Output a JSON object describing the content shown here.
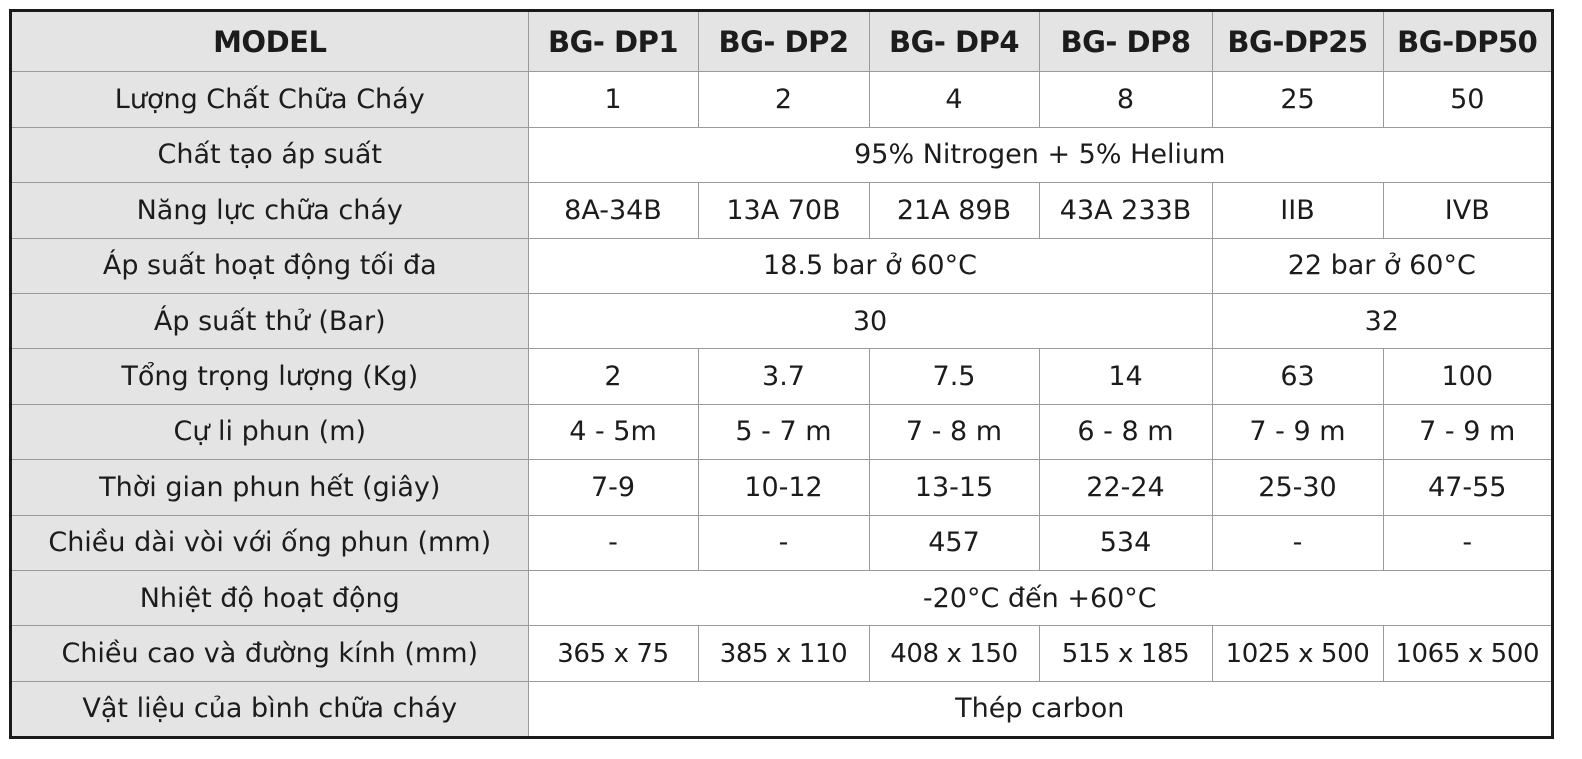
{
  "header": {
    "model_label": "MODEL",
    "models": [
      "BG- DP1",
      "BG- DP2",
      "BG- DP4",
      "BG- DP8",
      "BG-DP25",
      "BG-DP50"
    ]
  },
  "rows": {
    "agent_amount": {
      "label": "Lượng Chất Chữa Cháy",
      "values": [
        "1",
        "2",
        "4",
        "8",
        "25",
        "50"
      ]
    },
    "pressurizing_agent": {
      "label": "Chất tạo áp suất",
      "value": "95% Nitrogen + 5% Helium"
    },
    "fire_rating": {
      "label": "Năng lực chữa cháy",
      "values": [
        "8A-34B",
        "13A 70B",
        "21A 89B",
        "43A 233B",
        "IIB",
        "IVB"
      ]
    },
    "max_pressure": {
      "label": "Áp suất hoạt động tối đa",
      "value_small": "18.5 bar ở 60°C",
      "value_large": "22 bar ở 60°C"
    },
    "test_pressure": {
      "label": "Áp suất thử (Bar)",
      "value_small": "30",
      "value_large": "32"
    },
    "total_weight": {
      "label": "Tổng trọng lượng (Kg)",
      "values": [
        "2",
        "3.7",
        "7.5",
        "14",
        "63",
        "100"
      ]
    },
    "spray_range": {
      "label": "Cự li phun (m)",
      "values": [
        "4 - 5m",
        "5 - 7 m",
        "7 - 8 m",
        "6 - 8 m",
        "7 - 9 m",
        "7 - 9 m"
      ]
    },
    "discharge_time": {
      "label": "Thời gian phun hết (giây)",
      "values": [
        "7-9",
        "10-12",
        "13-15",
        "22-24",
        "25-30",
        "47-55"
      ]
    },
    "hose_length": {
      "label": "Chiều dài vòi với ống phun (mm)",
      "values": [
        "-",
        "-",
        "457",
        "534",
        "-",
        "-"
      ]
    },
    "operating_temp": {
      "label": "Nhiệt độ hoạt động",
      "value": "-20°C đến +60°C"
    },
    "dimensions": {
      "label": "Chiều cao và đường kính (mm)",
      "values": [
        "365 x 75",
        "385 x 110",
        "408 x 150",
        "515 x 185",
        "1025 x 500",
        "1065 x 500"
      ]
    },
    "material": {
      "label": "Vật liệu của bình chữa cháy",
      "value": "Thép carbon"
    }
  }
}
